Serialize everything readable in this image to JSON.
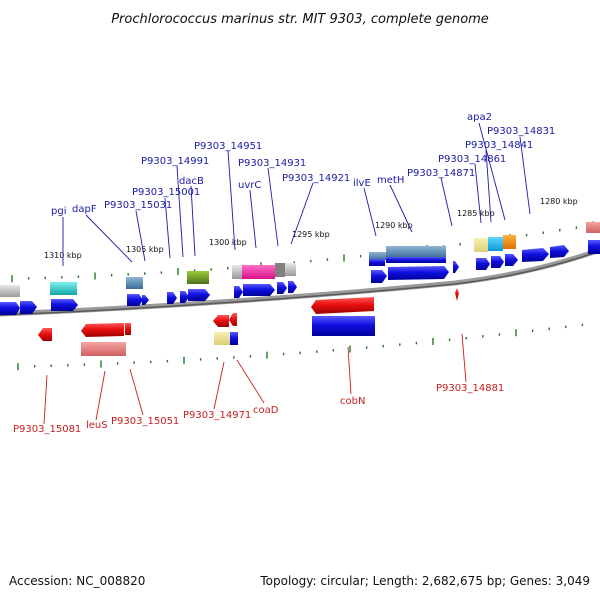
{
  "title": "Prochlorococcus marinus str. MIT 9303, complete genome",
  "footer": {
    "accession": "Accession: NC_008820",
    "summary": "Topology: circular; Length: 2,682,675 bp; Genes: 3,049"
  },
  "scale_labels": [
    "1310 kbp",
    "1305 kbp",
    "1300 kbp",
    "1295 kbp",
    "1290 kbp",
    "1285 kbp",
    "1280 kbp"
  ],
  "plus_strand_labels": [
    "pgi",
    "dapF",
    "P9303_15031",
    "P9303_15001",
    "P9303_14991",
    "dacB",
    "P9303_14951",
    "uvrC",
    "P9303_14931",
    "P9303_14921",
    "ilvE",
    "metH",
    "P9303_14871",
    "P9303_14861",
    "P9303_14841",
    "apa2",
    "P9303_14831"
  ],
  "minus_strand_labels": [
    "P9303_15081",
    "leuS",
    "P9303_15051",
    "P9303_14971",
    "coaD",
    "cobN",
    "P9303_14881"
  ],
  "colors": {
    "plus_label": "#1a1aa8",
    "minus_label": "#c81e1e",
    "plus_gene": "#1010e0",
    "minus_gene": "#e01010",
    "tick": "#1f7a1f",
    "backbone": "#8a8a8a"
  }
}
